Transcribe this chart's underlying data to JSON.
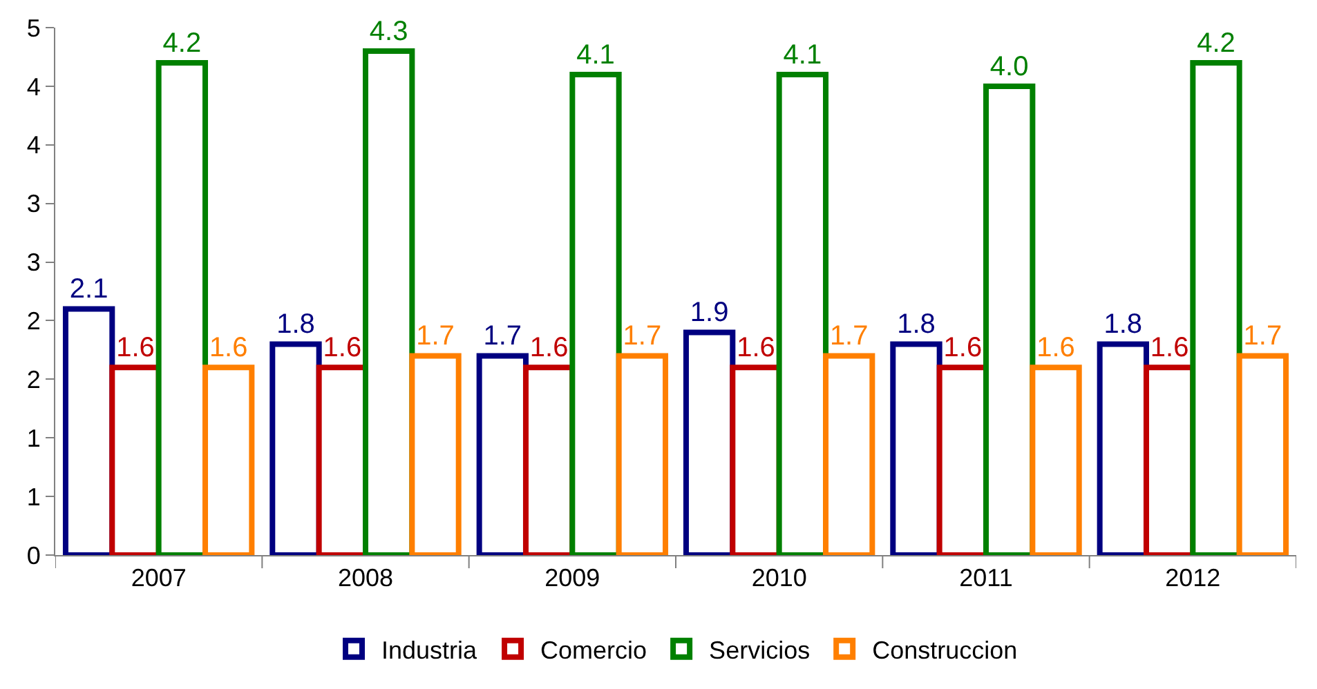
{
  "chart_data": {
    "type": "bar",
    "categories": [
      "2007",
      "2008",
      "2009",
      "2010",
      "2011",
      "2012"
    ],
    "series": [
      {
        "name": "Industria",
        "color": "#000080",
        "values": [
          2.1,
          1.8,
          1.7,
          1.9,
          1.8,
          1.8
        ],
        "value_labels": [
          "2.1",
          "1.8",
          "1.7",
          "1.9",
          "1.8",
          "1.8"
        ]
      },
      {
        "name": "Comercio",
        "color": "#c00000",
        "values": [
          1.6,
          1.6,
          1.6,
          1.6,
          1.6,
          1.6
        ],
        "value_labels": [
          "1.6",
          "1.6",
          "1.6",
          "1.6",
          "1.6",
          "1.6"
        ]
      },
      {
        "name": "Servicios",
        "color": "#008000",
        "values": [
          4.2,
          4.3,
          4.1,
          4.1,
          4.0,
          4.2
        ],
        "value_labels": [
          "4.2",
          "4.3",
          "4.1",
          "4.1",
          "4.0",
          "4.2"
        ]
      },
      {
        "name": "Construccion",
        "color": "#ff7f00",
        "values": [
          1.6,
          1.7,
          1.7,
          1.7,
          1.6,
          1.7
        ],
        "value_labels": [
          "1.6",
          "1.7",
          "1.7",
          "1.7",
          "1.6",
          "1.7"
        ]
      }
    ],
    "ylim": [
      0,
      4.5
    ],
    "yticks": [
      0,
      {
        "value": 0.5,
        "label": "1"
      },
      1,
      {
        "value": 1.5,
        "label": "2"
      },
      2,
      {
        "value": 2.5,
        "label": "3"
      },
      3,
      {
        "value": 3.5,
        "label": "4"
      },
      4,
      {
        "value": 4.5,
        "label": "5"
      }
    ],
    "legend": "bottom"
  }
}
